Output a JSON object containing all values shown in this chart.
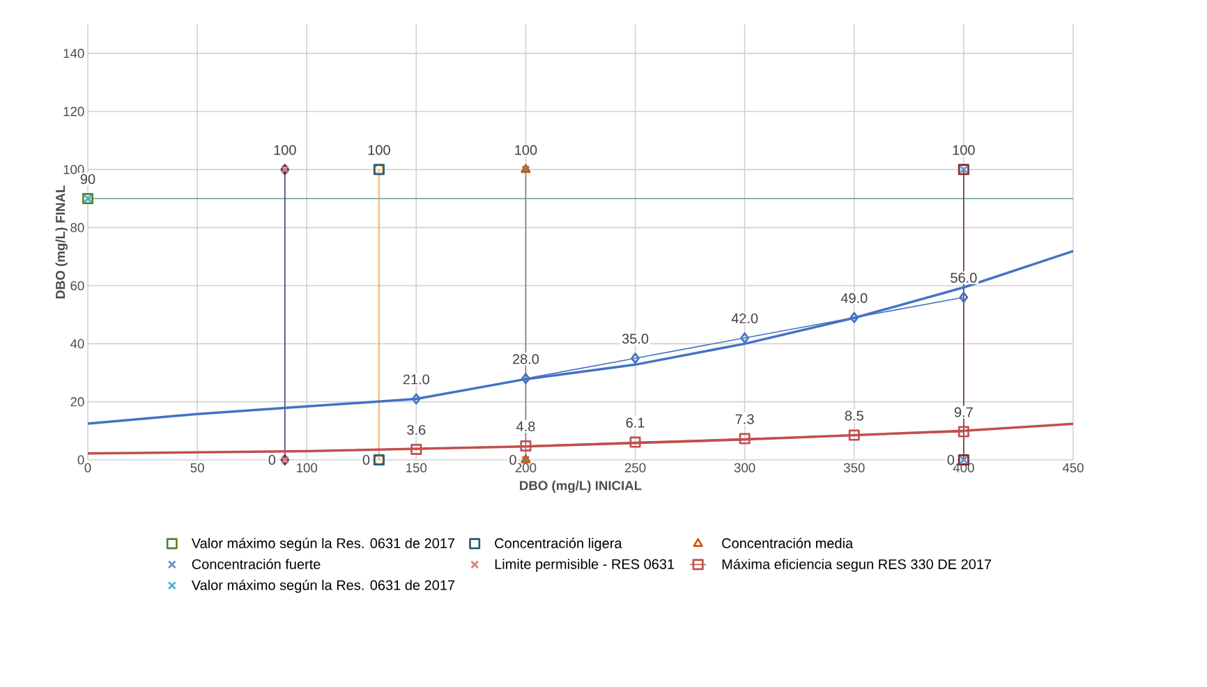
{
  "chart_data": {
    "type": "line",
    "xlabel": "DBO (mg/L)  INICIAL",
    "ylabel": "DBO (mg/L) FINAL",
    "xlim": [
      0,
      450
    ],
    "ylim": [
      0,
      150
    ],
    "xticks": [
      0,
      50,
      100,
      150,
      200,
      250,
      300,
      350,
      400,
      450
    ],
    "yticks": [
      0,
      20,
      40,
      60,
      80,
      100,
      120,
      140
    ],
    "grid": true,
    "legend": "bottom",
    "ref_lines": [
      {
        "axis": "y",
        "value": 90,
        "color": "#5b9e9a"
      }
    ],
    "series": [
      {
        "name": "Valor máximo según la Res. 0631 de 2017",
        "type": "scatter",
        "marker": "square",
        "color": "#548235",
        "x": [
          0
        ],
        "values": [
          90
        ],
        "value_labels": [
          "90"
        ]
      },
      {
        "name": "Concentración ligera",
        "type": "scatter",
        "marker": "square",
        "color": "#255e79",
        "x": [
          133,
          133
        ],
        "values": [
          0,
          100
        ]
      },
      {
        "name": "Concentración media",
        "type": "scatter",
        "marker": "triangle",
        "color": "#c55a11",
        "x": [
          200,
          200
        ],
        "values": [
          0,
          100
        ]
      },
      {
        "name": "Concentración fuerte",
        "type": "scatter",
        "marker": "cross",
        "color": "#6f8fc9",
        "x": [
          400,
          400
        ],
        "values": [
          0,
          100
        ]
      },
      {
        "name": "Limite permisible - RES 0631",
        "type": "scatter",
        "marker": "cross",
        "color": "#e07b7b",
        "x": [
          90,
          90
        ],
        "values": [
          0,
          100
        ]
      },
      {
        "name": "Máxima eficiencia segun RES 330 DE 2017",
        "marker": "square",
        "color": "#c0504d",
        "x": [
          150,
          200,
          250,
          300,
          350,
          400
        ],
        "values": [
          3.6,
          4.8,
          6.1,
          7.3,
          8.5,
          9.7
        ],
        "value_labels": [
          "3.6",
          "4.8",
          "6.1",
          "7.3",
          "8.5",
          "9.7"
        ]
      },
      {
        "name": "Valor máximo según la Res. 0631 de 2017",
        "type": "scatter",
        "marker": "cross",
        "color": "#4bacc6",
        "x": [
          0
        ],
        "values": [
          90
        ]
      },
      {
        "marker": "diamond",
        "color": "#4b3a6b",
        "x": [
          90,
          90
        ],
        "values": [
          0,
          100
        ],
        "value_labels": [
          "0",
          "100"
        ]
      },
      {
        "marker": "circle",
        "color": "#f4a04a",
        "x": [
          133,
          133
        ],
        "values": [
          0,
          100
        ],
        "value_labels": [
          "0",
          "100"
        ]
      },
      {
        "marker": "cross",
        "color": "#7f7f7f",
        "x": [
          200,
          200
        ],
        "values": [
          0,
          100
        ],
        "value_labels": [
          "0",
          "100"
        ]
      },
      {
        "marker": "square",
        "color": "#7b2c2c",
        "x": [
          400,
          400
        ],
        "values": [
          0,
          100
        ],
        "value_labels": [
          "0",
          "100"
        ]
      },
      {
        "marker": "diamond",
        "color": "#4472c4",
        "x": [
          150,
          200,
          250,
          300,
          350,
          400
        ],
        "values": [
          21,
          28,
          35,
          42,
          49,
          56
        ],
        "value_labels": [
          "21.0",
          "28.0",
          "35.0",
          "42.0",
          "49.0",
          "56.0"
        ]
      },
      {
        "marker": "none",
        "color": "#4472c4",
        "x": [
          0,
          50,
          100,
          150,
          200,
          250,
          300,
          350,
          400,
          450
        ],
        "values": [
          12.5,
          15.8,
          18.4,
          21,
          27.8,
          32.8,
          40,
          48.9,
          59.4,
          71.9
        ]
      },
      {
        "marker": "none",
        "color": "#c0504d",
        "x": [
          0,
          100,
          200,
          300,
          400,
          450
        ],
        "values": [
          2.2,
          3.0,
          4.6,
          7.0,
          10.0,
          12.4
        ]
      }
    ]
  }
}
